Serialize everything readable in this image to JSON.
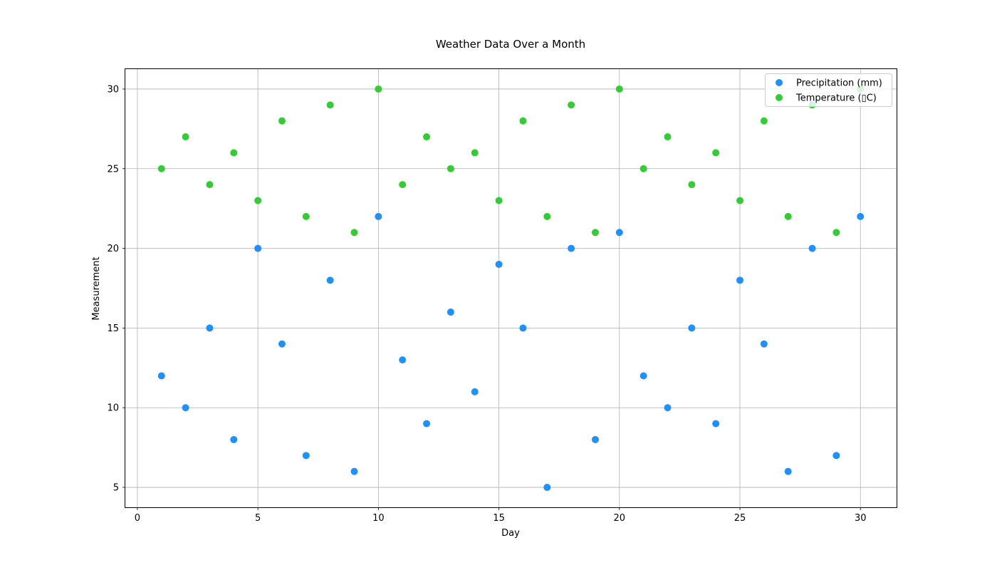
{
  "chart_data": {
    "type": "scatter",
    "title": "Weather Data Over a Month",
    "xlabel": "Day",
    "ylabel": "Measurement",
    "xlim": [
      -0.5,
      31.5
    ],
    "ylim": [
      3.75,
      31.25
    ],
    "xticks": [
      0,
      5,
      10,
      15,
      20,
      25,
      30
    ],
    "yticks": [
      5,
      10,
      15,
      20,
      25,
      30
    ],
    "grid": true,
    "legend_position": "top-right",
    "x": [
      1,
      2,
      3,
      4,
      5,
      6,
      7,
      8,
      9,
      10,
      11,
      12,
      13,
      14,
      15,
      16,
      17,
      18,
      19,
      20,
      21,
      22,
      23,
      24,
      25,
      26,
      27,
      28,
      29,
      30
    ],
    "series": [
      {
        "name": "Precipitation (mm)",
        "color": "#1e90ff",
        "values": [
          12,
          10,
          15,
          8,
          20,
          14,
          7,
          18,
          6,
          22,
          13,
          9,
          16,
          11,
          19,
          15,
          5,
          20,
          8,
          21,
          12,
          10,
          15,
          9,
          18,
          14,
          6,
          20,
          7,
          22
        ]
      },
      {
        "name": "Temperature (▯C)",
        "color": "#32cd32",
        "values": [
          25,
          27,
          24,
          26,
          23,
          28,
          22,
          29,
          21,
          30,
          24,
          27,
          25,
          26,
          23,
          28,
          22,
          29,
          21,
          30,
          25,
          27,
          24,
          26,
          23,
          28,
          22,
          29,
          21,
          30
        ]
      }
    ]
  }
}
